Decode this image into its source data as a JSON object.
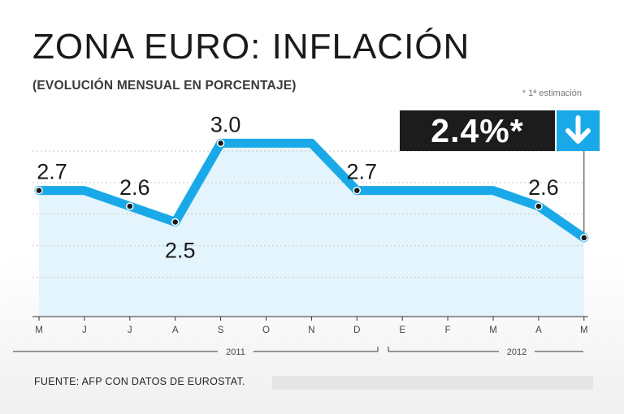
{
  "header": {
    "title": "ZONA EURO: INFLACIÓN",
    "subtitle": "(EVOLUCIÓN MENSUAL EN PORCENTAJE)",
    "footnote": "* 1ª estimación"
  },
  "callout": {
    "value_label": "2.4%*",
    "icon": "arrow-down-icon"
  },
  "source": "FUENTE: AFP CON DATOS DE EUROSTAT.",
  "colors": {
    "line": "#1aa9e8",
    "fill": "#dff2fb",
    "callout_bg": "#1c1c1c",
    "callout_icon_bg": "#1aa9e8",
    "point": "#1a1a1a"
  },
  "chart_data": {
    "type": "line",
    "title": "ZONA EURO: INFLACIÓN",
    "subtitle": "(EVOLUCIÓN MENSUAL EN PORCENTAJE)",
    "x": [
      "M",
      "J",
      "J",
      "A",
      "S",
      "O",
      "N",
      "D",
      "E",
      "F",
      "M",
      "A",
      "M"
    ],
    "years": [
      {
        "label": "2011",
        "months": [
          "M",
          "J",
          "J",
          "A",
          "S",
          "O",
          "N",
          "D"
        ]
      },
      {
        "label": "2012",
        "months": [
          "E",
          "F",
          "M",
          "A",
          "M"
        ]
      }
    ],
    "series": [
      {
        "values": [
          2.7,
          2.7,
          2.6,
          2.5,
          3.0,
          3.0,
          3.0,
          2.7,
          2.7,
          2.7,
          2.7,
          2.6,
          2.4
        ]
      }
    ],
    "point_labels": [
      {
        "index": 0,
        "text": "2.7"
      },
      {
        "index": 2,
        "text": "2.6"
      },
      {
        "index": 3,
        "text": "2.5"
      },
      {
        "index": 4,
        "text": "3.0"
      },
      {
        "index": 7,
        "text": "2.7"
      },
      {
        "index": 11,
        "text": "2.6"
      }
    ],
    "marked_points": [
      0,
      2,
      3,
      4,
      7,
      11,
      12
    ],
    "highlight": {
      "index": 12,
      "text": "2.4%*"
    },
    "ylim": [
      1.9,
      3.1
    ],
    "grid": true,
    "legend": "none"
  }
}
